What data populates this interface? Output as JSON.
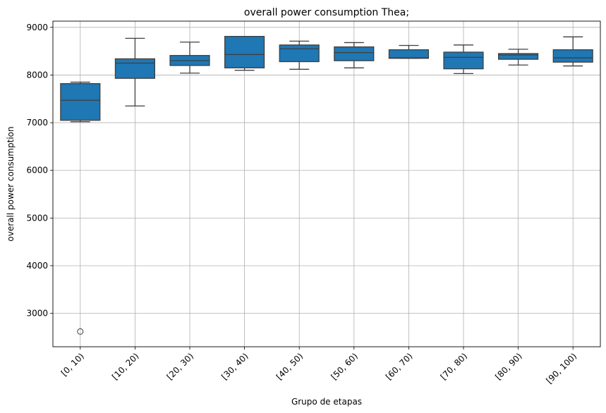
{
  "chart_data": {
    "type": "box",
    "title": "overall power consumption Thea;",
    "xlabel": "Grupo de etapas",
    "ylabel": "overall power consumption",
    "ylim": [
      2300,
      9130
    ],
    "yticks": [
      3000,
      4000,
      5000,
      6000,
      7000,
      8000,
      9000
    ],
    "grid": true,
    "box_color": "#1f77b4",
    "categories": [
      "[0, 10)",
      "[10, 20)",
      "[20, 30)",
      "[30, 40)",
      "[40, 50)",
      "[50, 60)",
      "[60, 70)",
      "[70, 80)",
      "[80, 90)",
      "[90, 100)"
    ],
    "boxes": [
      {
        "whisker_low": 7020,
        "q1": 7050,
        "median": 7470,
        "q3": 7820,
        "whisker_high": 7850,
        "outliers": [
          2620
        ]
      },
      {
        "whisker_low": 7350,
        "q1": 7930,
        "median": 8250,
        "q3": 8340,
        "whisker_high": 8770,
        "outliers": []
      },
      {
        "whisker_low": 8040,
        "q1": 8200,
        "median": 8300,
        "q3": 8410,
        "whisker_high": 8690,
        "outliers": []
      },
      {
        "whisker_low": 8100,
        "q1": 8150,
        "median": 8430,
        "q3": 8810,
        "whisker_high": 8810,
        "outliers": []
      },
      {
        "whisker_low": 8120,
        "q1": 8280,
        "median": 8550,
        "q3": 8630,
        "whisker_high": 8710,
        "outliers": []
      },
      {
        "whisker_low": 8150,
        "q1": 8300,
        "median": 8470,
        "q3": 8590,
        "whisker_high": 8680,
        "outliers": []
      },
      {
        "whisker_low": 8350,
        "q1": 8350,
        "median": 8360,
        "q3": 8530,
        "whisker_high": 8620,
        "outliers": []
      },
      {
        "whisker_low": 8030,
        "q1": 8130,
        "median": 8370,
        "q3": 8480,
        "whisker_high": 8630,
        "outliers": []
      },
      {
        "whisker_low": 8210,
        "q1": 8330,
        "median": 8420,
        "q3": 8450,
        "whisker_high": 8540,
        "outliers": []
      },
      {
        "whisker_low": 8190,
        "q1": 8270,
        "median": 8360,
        "q3": 8530,
        "whisker_high": 8800,
        "outliers": []
      }
    ]
  }
}
